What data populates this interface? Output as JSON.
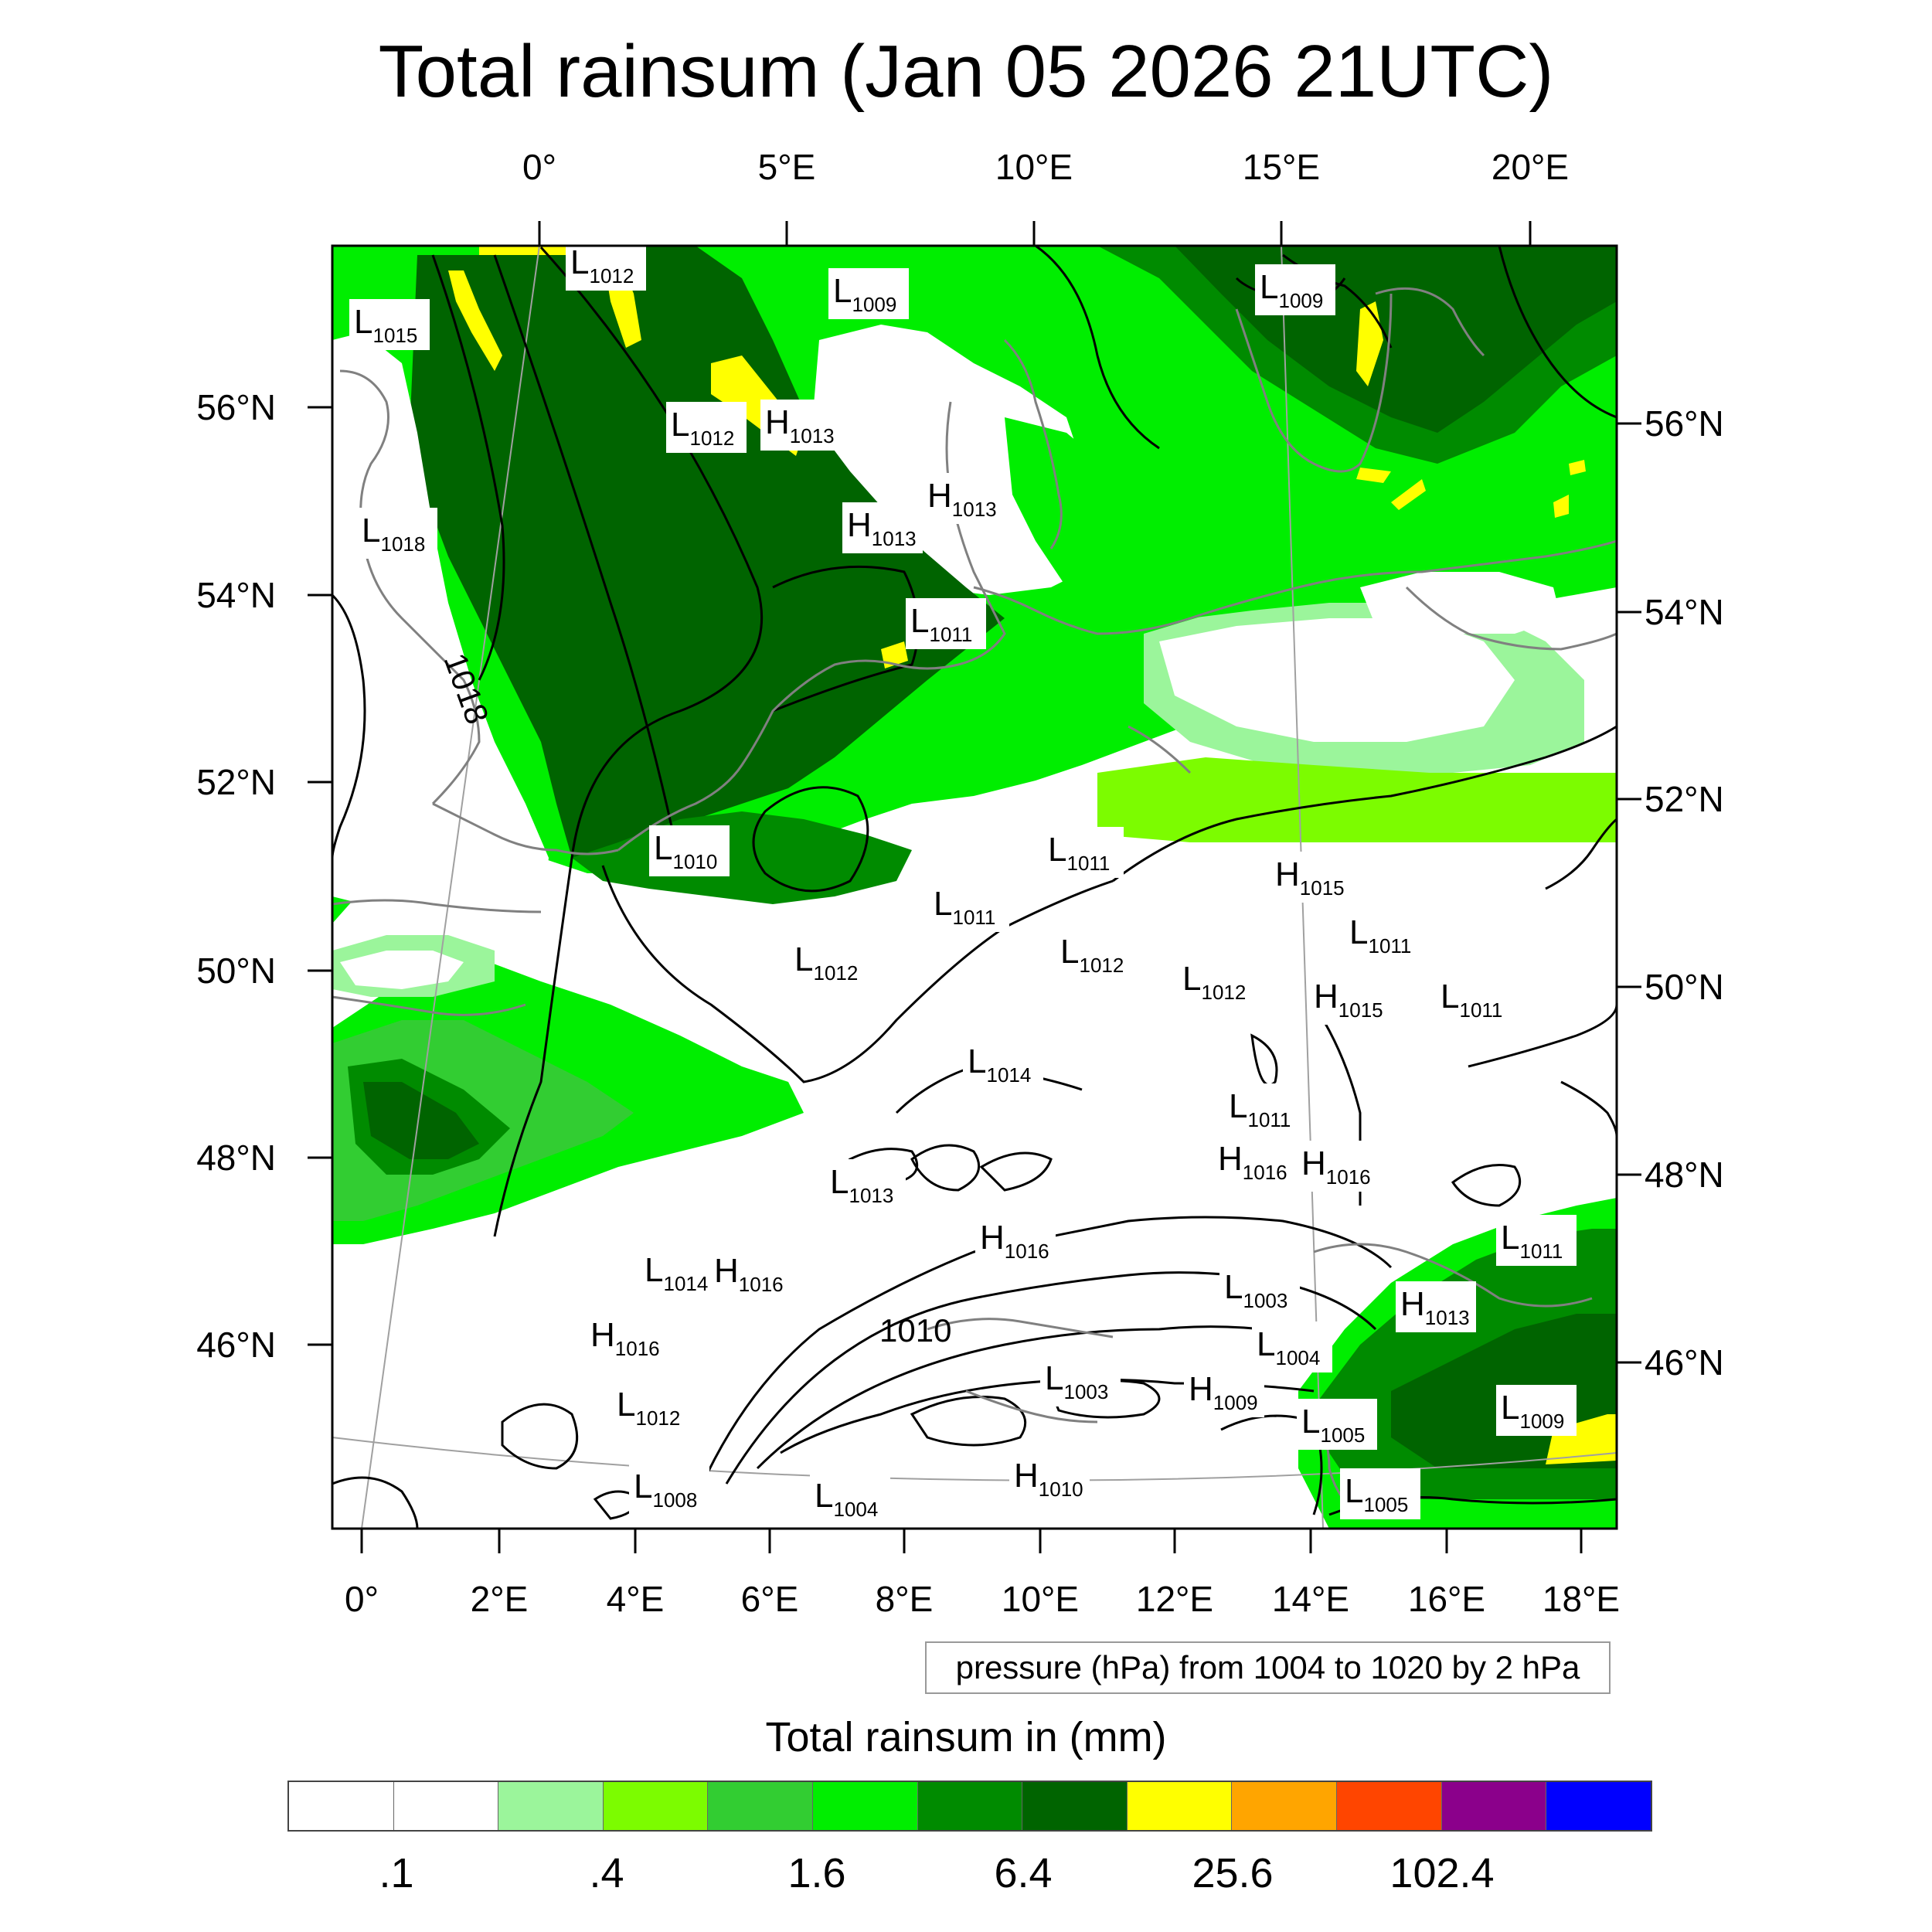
{
  "title": "Total rainsum (Jan 05 2026 21UTC)",
  "lon_ticks_top": [
    "0°",
    "5°E",
    "10°E",
    "15°E",
    "20°E"
  ],
  "lon_ticks_bottom": [
    "0°",
    "2°E",
    "4°E",
    "6°E",
    "8°E",
    "10°E",
    "12°E",
    "14°E",
    "16°E",
    "18°E"
  ],
  "lat_ticks_left": [
    "56°N",
    "54°N",
    "52°N",
    "50°N",
    "48°N",
    "46°N"
  ],
  "lat_ticks_right": [
    "56°N",
    "54°N",
    "52°N",
    "50°N",
    "48°N",
    "46°N"
  ],
  "contour_info": "pressure (hPa) from 1004 to 1020 by 2 hPa",
  "contour_labels": [
    "1018",
    "1010"
  ],
  "pressure_centers": [
    {
      "type": "L",
      "value": "1012"
    },
    {
      "type": "L",
      "value": "1009"
    },
    {
      "type": "L",
      "value": "1009"
    },
    {
      "type": "L",
      "value": "1015"
    },
    {
      "type": "L",
      "value": "1012"
    },
    {
      "type": "H",
      "value": "1013"
    },
    {
      "type": "H",
      "value": "1013"
    },
    {
      "type": "H",
      "value": "1013"
    },
    {
      "type": "L",
      "value": "1018"
    },
    {
      "type": "L",
      "value": "1011"
    },
    {
      "type": "L",
      "value": "1010"
    },
    {
      "type": "L",
      "value": "1011"
    },
    {
      "type": "L",
      "value": "1011"
    },
    {
      "type": "H",
      "value": "1015"
    },
    {
      "type": "L",
      "value": "1012"
    },
    {
      "type": "L",
      "value": "1012"
    },
    {
      "type": "L",
      "value": "1012"
    },
    {
      "type": "L",
      "value": "1011"
    },
    {
      "type": "H",
      "value": "1015"
    },
    {
      "type": "L",
      "value": "1011"
    },
    {
      "type": "L",
      "value": "1014"
    },
    {
      "type": "L",
      "value": "1011"
    },
    {
      "type": "H",
      "value": "1016"
    },
    {
      "type": "H",
      "value": "1016"
    },
    {
      "type": "L",
      "value": "1013"
    },
    {
      "type": "H",
      "value": "1016"
    },
    {
      "type": "L",
      "value": "1014"
    },
    {
      "type": "H",
      "value": "1016"
    },
    {
      "type": "L",
      "value": "1011"
    },
    {
      "type": "L",
      "value": "1003"
    },
    {
      "type": "H",
      "value": "1013"
    },
    {
      "type": "H",
      "value": "1016"
    },
    {
      "type": "L",
      "value": "1004"
    },
    {
      "type": "L",
      "value": "1003"
    },
    {
      "type": "H",
      "value": "1009"
    },
    {
      "type": "L",
      "value": "1012"
    },
    {
      "type": "L",
      "value": "1009"
    },
    {
      "type": "L",
      "value": "1005"
    },
    {
      "type": "L",
      "value": "1008"
    },
    {
      "type": "L",
      "value": "1004"
    },
    {
      "type": "H",
      "value": "1010"
    },
    {
      "type": "L",
      "value": "1005"
    }
  ],
  "colorbar": {
    "title": "Total rainsum in (mm)",
    "colors": [
      "#ffffff",
      "#ffffff",
      "#9bf59b",
      "#7cfc00",
      "#32cd32",
      "#00ee00",
      "#008b00",
      "#006400",
      "#ffff00",
      "#ffa500",
      "#ff4500",
      "#8b008b",
      "#0000ff"
    ],
    "labels": [
      ".1",
      ".4",
      "1.6",
      "6.4",
      "25.6",
      "102.4"
    ]
  },
  "map_colors": {
    "land_outline": "#808080",
    "contour": "#000000",
    "grid": "#a0a0a0",
    "frame": "#000000"
  }
}
